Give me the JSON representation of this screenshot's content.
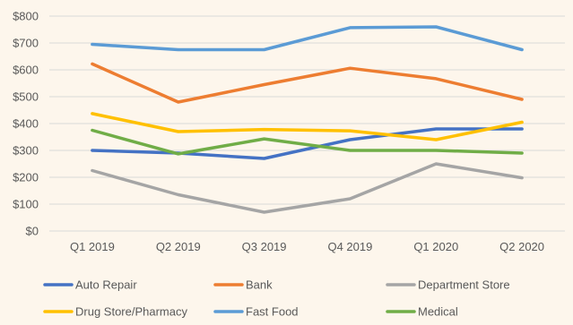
{
  "chart_data": {
    "type": "line",
    "title": "",
    "xlabel": "",
    "ylabel": "",
    "categories": [
      "Q1 2019",
      "Q2 2019",
      "Q3 2019",
      "Q4 2019",
      "Q1 2020",
      "Q2 2020"
    ],
    "ylim": [
      0,
      800
    ],
    "yticks": [
      0,
      100,
      200,
      300,
      400,
      500,
      600,
      700,
      800
    ],
    "ytick_labels": [
      "$0",
      "$100",
      "$200",
      "$300",
      "$400",
      "$500",
      "$600",
      "$700",
      "$800"
    ],
    "grid": true,
    "legend_position": "bottom",
    "series": [
      {
        "name": "Auto Repair",
        "color": "#4472c4",
        "values": [
          300,
          290,
          270,
          340,
          380,
          380
        ]
      },
      {
        "name": "Bank",
        "color": "#ed7d31",
        "values": [
          622,
          480,
          545,
          606,
          567,
          490
        ]
      },
      {
        "name": "Department Store",
        "color": "#a5a5a5",
        "values": [
          225,
          135,
          70,
          120,
          250,
          198
        ]
      },
      {
        "name": "Drug Store/Pharmacy",
        "color": "#ffc000",
        "values": [
          437,
          370,
          378,
          373,
          340,
          405
        ]
      },
      {
        "name": "Fast Food",
        "color": "#5b9bd5",
        "values": [
          695,
          675,
          675,
          757,
          760,
          675
        ]
      },
      {
        "name": "Medical",
        "color": "#70ad47",
        "values": [
          375,
          287,
          343,
          300,
          300,
          290
        ]
      }
    ]
  }
}
